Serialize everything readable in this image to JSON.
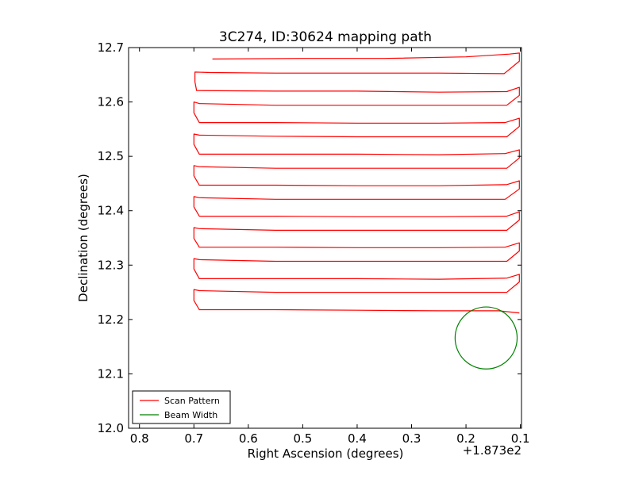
{
  "chart_data": {
    "type": "line",
    "title": "3C274, ID:30624 mapping path",
    "xlabel": "Right Ascension (degrees)",
    "ylabel": "Declination (degrees)",
    "x_offset_label": "+1.873e2",
    "xlim": [
      0.82,
      0.098
    ],
    "ylim": [
      12.0,
      12.7
    ],
    "x_ticks": [
      "0.8",
      "0.7",
      "0.6",
      "0.5",
      "0.4",
      "0.3",
      "0.2",
      "0.1"
    ],
    "x_tick_values": [
      0.8,
      0.7,
      0.6,
      0.5,
      0.4,
      0.3,
      0.2,
      0.1
    ],
    "y_ticks": [
      "12.0",
      "12.1",
      "12.2",
      "12.3",
      "12.4",
      "12.5",
      "12.6",
      "12.7"
    ],
    "y_tick_values": [
      12.0,
      12.1,
      12.2,
      12.3,
      12.4,
      12.5,
      12.6,
      12.7
    ],
    "grid": false,
    "legend_position": "lower-left",
    "series": [
      {
        "name": "Scan Pattern",
        "color": "#ff0000",
        "kind": "line",
        "x": [
          0.666,
          0.5,
          0.35,
          0.2,
          0.12,
          0.102,
          0.102,
          0.13,
          0.25,
          0.4,
          0.55,
          0.67,
          0.698,
          0.698,
          0.695,
          0.55,
          0.4,
          0.25,
          0.125,
          0.102,
          0.102,
          0.125,
          0.25,
          0.4,
          0.55,
          0.69,
          0.7,
          0.7,
          0.69,
          0.55,
          0.4,
          0.25,
          0.128,
          0.102,
          0.102,
          0.125,
          0.25,
          0.4,
          0.55,
          0.69,
          0.7,
          0.7,
          0.69,
          0.55,
          0.4,
          0.25,
          0.128,
          0.102,
          0.102,
          0.125,
          0.25,
          0.4,
          0.55,
          0.69,
          0.7,
          0.7,
          0.69,
          0.55,
          0.4,
          0.25,
          0.125,
          0.102,
          0.102,
          0.128,
          0.25,
          0.4,
          0.55,
          0.69,
          0.7,
          0.7,
          0.69,
          0.55,
          0.4,
          0.25,
          0.125,
          0.102,
          0.102,
          0.125,
          0.25,
          0.4,
          0.55,
          0.69,
          0.7,
          0.7,
          0.69,
          0.55,
          0.4,
          0.25,
          0.128,
          0.102,
          0.102,
          0.125,
          0.25,
          0.4,
          0.55,
          0.69,
          0.7,
          0.7,
          0.69,
          0.55,
          0.4,
          0.25,
          0.125,
          0.102,
          0.102,
          0.125,
          0.25,
          0.4,
          0.55,
          0.69,
          0.7,
          0.7,
          0.69,
          0.55,
          0.4,
          0.25,
          0.14,
          0.102
        ],
        "y": [
          12.679,
          12.68,
          12.68,
          12.683,
          12.688,
          12.69,
          12.675,
          12.652,
          12.653,
          12.653,
          12.653,
          12.654,
          12.655,
          12.637,
          12.621,
          12.62,
          12.62,
          12.618,
          12.619,
          12.627,
          12.612,
          12.594,
          12.594,
          12.594,
          12.594,
          12.597,
          12.6,
          12.58,
          12.562,
          12.562,
          12.561,
          12.561,
          12.562,
          12.57,
          12.555,
          12.536,
          12.536,
          12.536,
          12.537,
          12.539,
          12.541,
          12.522,
          12.504,
          12.504,
          12.504,
          12.503,
          12.505,
          12.512,
          12.497,
          12.478,
          12.478,
          12.478,
          12.478,
          12.481,
          12.483,
          12.464,
          12.447,
          12.447,
          12.446,
          12.446,
          12.448,
          12.455,
          12.44,
          12.421,
          12.421,
          12.421,
          12.421,
          12.424,
          12.426,
          12.407,
          12.39,
          12.39,
          12.389,
          12.389,
          12.39,
          12.398,
          12.383,
          12.364,
          12.364,
          12.364,
          12.364,
          12.367,
          12.369,
          12.349,
          12.333,
          12.333,
          12.332,
          12.332,
          12.333,
          12.341,
          12.326,
          12.307,
          12.307,
          12.307,
          12.307,
          12.31,
          12.312,
          12.293,
          12.275,
          12.275,
          12.275,
          12.274,
          12.276,
          12.283,
          12.269,
          12.25,
          12.25,
          12.25,
          12.25,
          12.253,
          12.255,
          12.235,
          12.218,
          12.218,
          12.217,
          12.216,
          12.216,
          12.212
        ]
      },
      {
        "name": "Beam Width",
        "color": "#008000",
        "kind": "circle",
        "center_x": 0.163,
        "center_y": 12.166,
        "radius_dec": 0.057
      }
    ]
  }
}
